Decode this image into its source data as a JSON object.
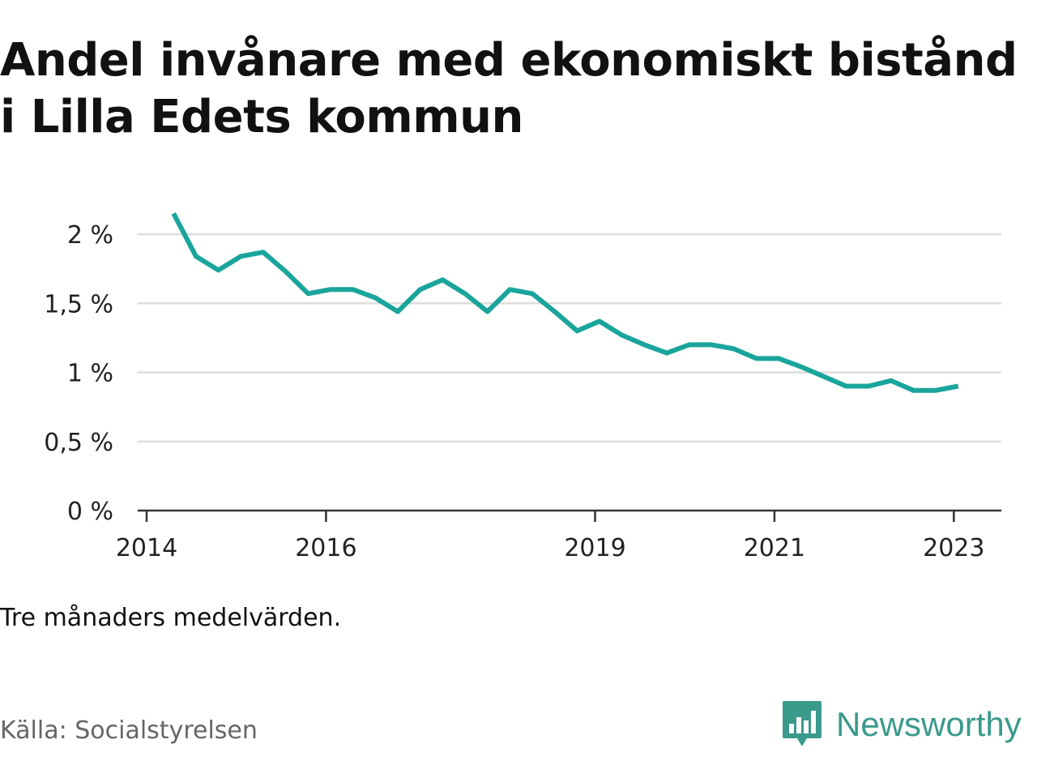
{
  "title": "Andel invånare med ekonomiskt bistånd i Lilla Edets kommun",
  "note": "Tre månaders medelvärden.",
  "source": "Källa: Socialstyrelsen",
  "brand": {
    "name": "Newsworthy",
    "icon": "newsworthy-logo-icon",
    "color": "#3a9a8c"
  },
  "colors": {
    "line": "#1aa59c",
    "grid": "#dddddd",
    "axis": "#333333"
  },
  "chart_data": {
    "type": "line",
    "title": "Andel invånare med ekonomiskt bistånd i Lilla Edets kommun",
    "xlabel": "",
    "ylabel": "",
    "ylim": [
      0,
      2.2
    ],
    "xlim": [
      2014.0,
      2023.5
    ],
    "grid": true,
    "yticks": [
      {
        "value": 0,
        "label": "0 %"
      },
      {
        "value": 0.5,
        "label": "0,5 %"
      },
      {
        "value": 1,
        "label": "1 %"
      },
      {
        "value": 1.5,
        "label": "1,5 %"
      },
      {
        "value": 2,
        "label": "2 %"
      }
    ],
    "xticks": [
      {
        "value": 2014,
        "label": "2014"
      },
      {
        "value": 2016,
        "label": "2016"
      },
      {
        "value": 2019,
        "label": "2019"
      },
      {
        "value": 2021,
        "label": "2021"
      },
      {
        "value": 2023,
        "label": "2023"
      }
    ],
    "series": [
      {
        "x": [
          2014.3,
          2014.55,
          2014.8,
          2015.05,
          2015.3,
          2015.55,
          2015.8,
          2016.05,
          2016.3,
          2016.55,
          2016.8,
          2017.05,
          2017.3,
          2017.55,
          2017.8,
          2018.05,
          2018.3,
          2018.55,
          2018.8,
          2019.05,
          2019.3,
          2019.55,
          2019.8,
          2020.05,
          2020.3,
          2020.55,
          2020.8,
          2021.05,
          2021.3,
          2021.55,
          2021.8,
          2022.05,
          2022.3,
          2022.55,
          2022.8,
          2023.05
        ],
        "values": [
          2.15,
          1.84,
          1.74,
          1.84,
          1.87,
          1.73,
          1.57,
          1.6,
          1.6,
          1.54,
          1.44,
          1.6,
          1.67,
          1.57,
          1.44,
          1.6,
          1.57,
          1.44,
          1.3,
          1.37,
          1.27,
          1.2,
          1.14,
          1.2,
          1.2,
          1.17,
          1.1,
          1.1,
          1.04,
          0.97,
          0.9,
          0.9,
          0.94,
          0.87,
          0.87,
          0.9
        ]
      }
    ]
  }
}
